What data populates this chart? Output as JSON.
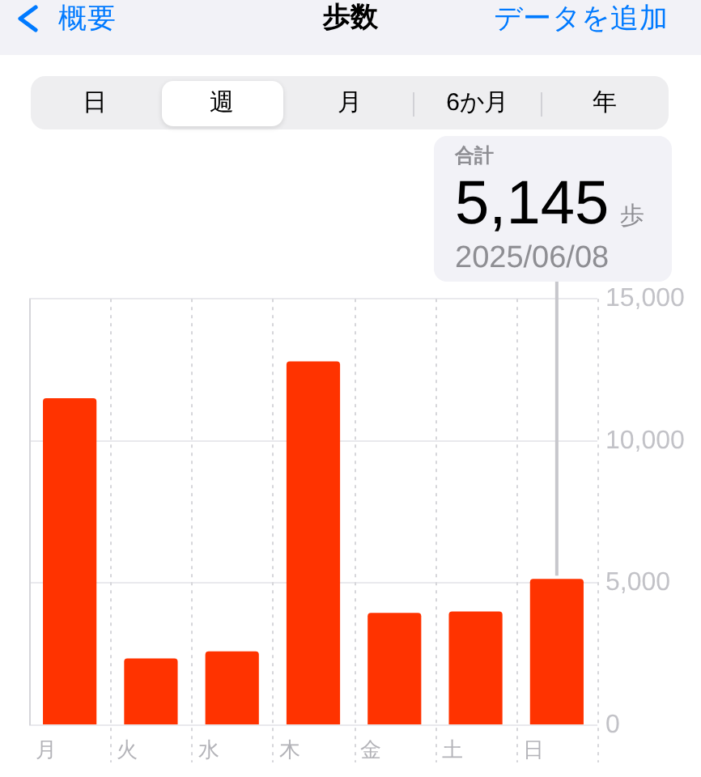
{
  "chart_data": {
    "type": "bar",
    "title": "歩数",
    "categories": [
      "月",
      "火",
      "水",
      "木",
      "金",
      "土",
      "日"
    ],
    "values": [
      11500,
      2350,
      2600,
      12800,
      3950,
      4000,
      5145
    ],
    "color": "#ff3300",
    "ylim": [
      0,
      15000
    ],
    "yticks": [
      0,
      {
        "value": 5000,
        "label": "5,000"
      },
      {
        "value": 10000,
        "label": "10,000"
      },
      {
        "value": 15000,
        "label": "15,000"
      }
    ],
    "grid": true,
    "annotations": [
      "概要",
      "データを追加",
      "日",
      "週",
      "月",
      "6か月",
      "年",
      "合計",
      "5,145",
      "歩",
      "2025/06/08"
    ]
  }
}
